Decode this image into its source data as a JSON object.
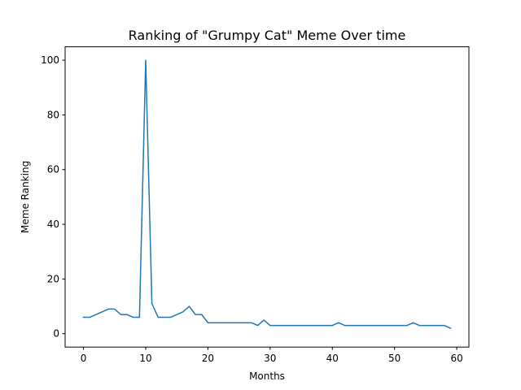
{
  "chart_data": {
    "type": "line",
    "title": "Ranking of \"Grumpy Cat\" Meme Over time",
    "xlabel": "Months",
    "ylabel": "Meme Ranking",
    "xlim": [
      -2.95,
      61.95
    ],
    "ylim": [
      -4.9,
      104.9
    ],
    "grid": false,
    "legend": "none",
    "x_ticks": [
      0,
      10,
      20,
      30,
      40,
      50,
      60
    ],
    "y_ticks": [
      0,
      20,
      40,
      60,
      80,
      100
    ],
    "series": [
      {
        "color": "#1f77b4",
        "x": [
          0,
          1,
          2,
          3,
          4,
          5,
          6,
          7,
          8,
          9,
          10,
          11,
          12,
          13,
          14,
          15,
          16,
          17,
          18,
          19,
          20,
          21,
          22,
          23,
          24,
          25,
          26,
          27,
          28,
          29,
          30,
          31,
          32,
          33,
          34,
          35,
          36,
          37,
          38,
          39,
          40,
          41,
          42,
          43,
          44,
          45,
          46,
          47,
          48,
          49,
          50,
          51,
          52,
          53,
          54,
          55,
          56,
          57,
          58,
          59
        ],
        "values": [
          6,
          6,
          7,
          8,
          9,
          9,
          7,
          7,
          6,
          6,
          100,
          11,
          6,
          6,
          6,
          7,
          8,
          10,
          7,
          7,
          4,
          4,
          4,
          4,
          4,
          4,
          4,
          4,
          3,
          5,
          3,
          3,
          3,
          3,
          3,
          3,
          3,
          3,
          3,
          3,
          3,
          4,
          3,
          3,
          3,
          3,
          3,
          3,
          3,
          3,
          3,
          3,
          3,
          4,
          3,
          3,
          3,
          3,
          3,
          2
        ]
      }
    ]
  }
}
